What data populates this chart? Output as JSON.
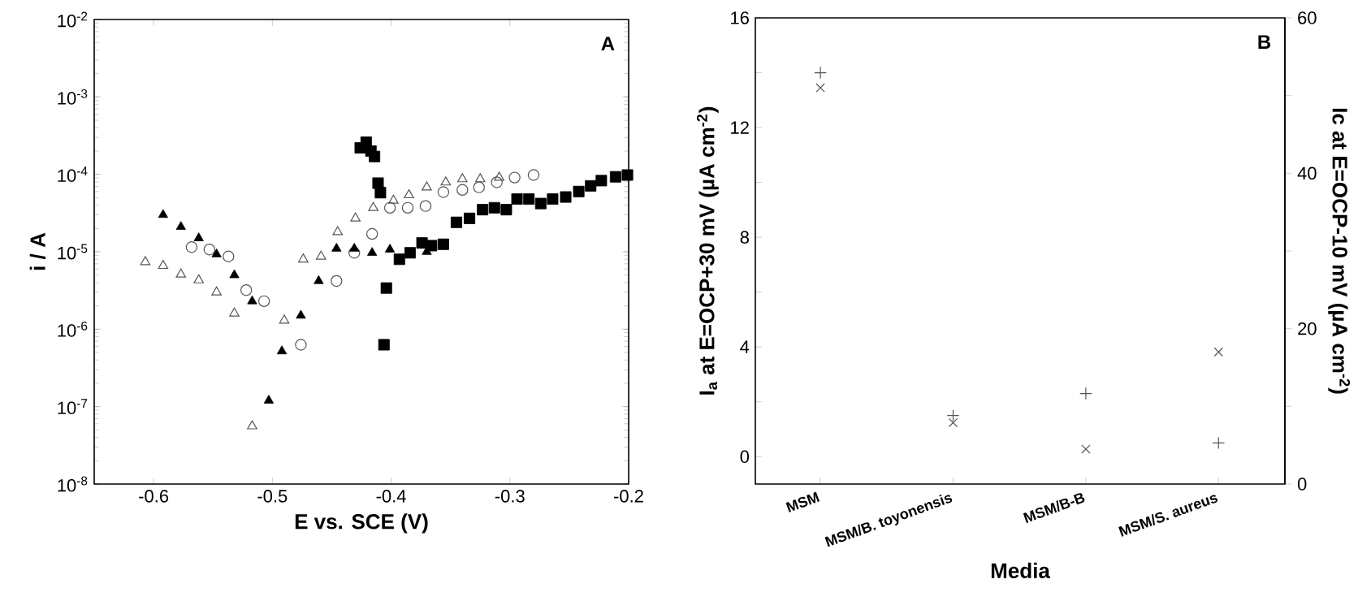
{
  "chart_data": [
    {
      "type": "scatter",
      "xlabel": "E vs. SCE (V)",
      "ylabel": "i / A",
      "log": "y",
      "xlim": [
        -0.65,
        -0.2
      ],
      "xticks": [
        -0.6,
        -0.5,
        -0.4,
        -0.3,
        -0.2
      ],
      "ylim": [
        1e-08,
        0.01
      ],
      "yticks": [
        {
          "value": 1e-08,
          "label": "10$^{-8}$"
        },
        {
          "value": 1e-07,
          "label": "10$^{-7}$"
        },
        {
          "value": 1e-06,
          "label": "10$^{-6}$"
        },
        {
          "value": 1e-05,
          "label": "10$^{-5}$"
        },
        {
          "value": 0.0001,
          "label": "10$^{-4}$"
        },
        {
          "value": 0.001,
          "label": "10$^{-3}$"
        },
        {
          "value": 0.01,
          "label": "10$^{-2}$"
        }
      ],
      "annotations": [
        "A"
      ],
      "series": [
        {
          "marker": "triangle",
          "color": "#555555",
          "x": [
            -0.607,
            -0.592,
            -0.577,
            -0.562,
            -0.547,
            -0.532,
            -0.517,
            -0.49,
            -0.474,
            -0.459,
            -0.445,
            -0.43,
            -0.415,
            -0.398,
            -0.385,
            -0.37,
            -0.354,
            -0.34,
            -0.325,
            -0.309
          ],
          "values": [
            7.4e-06,
            6.6e-06,
            5.1e-06,
            4.3e-06,
            3e-06,
            1.6e-06,
            5.6e-08,
            1.3e-06,
            8e-06,
            8.7e-06,
            1.8e-05,
            2.7e-05,
            3.7e-05,
            4.6e-05,
            5.4e-05,
            6.8e-05,
            7.9e-05,
            8.7e-05,
            8.7e-05,
            9.1e-05
          ]
        },
        {
          "marker": "circle",
          "color": "#555555",
          "x": [
            -0.568,
            -0.553,
            -0.537,
            -0.522,
            -0.507,
            -0.476,
            -0.446,
            -0.431,
            -0.416,
            -0.401,
            -0.386,
            -0.371,
            -0.356,
            -0.34,
            -0.326,
            -0.311,
            -0.296,
            -0.28
          ],
          "values": [
            1.15e-05,
            1.07e-05,
            8.7e-06,
            3.2e-06,
            2.3e-06,
            6.3e-07,
            4.2e-06,
            9.7e-06,
            1.7e-05,
            3.7e-05,
            3.7e-05,
            3.9e-05,
            5.9e-05,
            6.3e-05,
            6.8e-05,
            7.9e-05,
            9.1e-05,
            9.8e-05
          ]
        },
        {
          "marker": "triangle",
          "color": "#000000",
          "x": [
            -0.592,
            -0.577,
            -0.562,
            -0.547,
            -0.532,
            -0.517,
            -0.503,
            -0.492,
            -0.476,
            -0.461,
            -0.446,
            -0.431,
            -0.416,
            -0.401,
            -0.37
          ],
          "values": [
            3e-05,
            2.1e-05,
            1.5e-05,
            9.3e-06,
            5e-06,
            2.3e-06,
            1.2e-07,
            5.2e-07,
            1.5e-06,
            4.2e-06,
            1.1e-05,
            1.1e-05,
            9.7e-06,
            1.07e-05,
            1e-05
          ]
        },
        {
          "marker": "square",
          "color": "#000000",
          "x": [
            -0.426,
            -0.421,
            -0.417,
            -0.414,
            -0.411,
            -0.409,
            -0.406,
            -0.404,
            -0.393,
            -0.384,
            -0.374,
            -0.366,
            -0.356,
            -0.345,
            -0.334,
            -0.323,
            -0.313,
            -0.303,
            -0.294,
            -0.284,
            -0.274,
            -0.264,
            -0.253,
            -0.242,
            -0.232,
            -0.223,
            -0.211,
            -0.201
          ],
          "values": [
            0.00022,
            0.00026,
            0.0002,
            0.00017,
            7.7e-05,
            5.8e-05,
            6.3e-07,
            3.4e-06,
            8e-06,
            9.7e-06,
            1.3e-05,
            1.2e-05,
            1.25e-05,
            2.4e-05,
            2.7e-05,
            3.5e-05,
            3.7e-05,
            3.5e-05,
            4.8e-05,
            4.8e-05,
            4.2e-05,
            4.8e-05,
            5.1e-05,
            6e-05,
            7.1e-05,
            8.3e-05,
            9.3e-05,
            9.8e-05
          ]
        }
      ]
    },
    {
      "type": "scatter",
      "xlabel": "Media",
      "ylabel": "I$_{a}$ at E=OCP+30 mV (µA cm$^{-2}$)",
      "y2label": "Ic at E=OCP-10 mV (µA cm$^{-2}$)",
      "categories": [
        "MSM",
        "MSM/B. toyonensis",
        "MSM/B-B",
        "MSM/S. aureus"
      ],
      "ylim": [
        -1,
        16
      ],
      "yticks": [
        0,
        {
          "value": 2,
          "label": null
        },
        4,
        {
          "value": 6,
          "label": null
        },
        8,
        {
          "value": 10,
          "label": null
        },
        12,
        {
          "value": 14,
          "label": null
        },
        16
      ],
      "y2lim": [
        0,
        60
      ],
      "y2ticks": [
        0,
        {
          "value": 10,
          "label": null
        },
        20,
        {
          "value": 30,
          "label": null
        },
        40,
        {
          "value": 50,
          "label": null
        },
        60
      ],
      "annotations": [
        "B"
      ],
      "series": [
        {
          "marker": "plus",
          "color": "#555555",
          "values": [
            14.0,
            1.5,
            2.3,
            0.5
          ]
        },
        {
          "marker": "cross",
          "color": "#555555",
          "axis": "y2",
          "values": [
            51.0,
            7.9,
            4.5,
            17.0
          ]
        }
      ]
    }
  ]
}
